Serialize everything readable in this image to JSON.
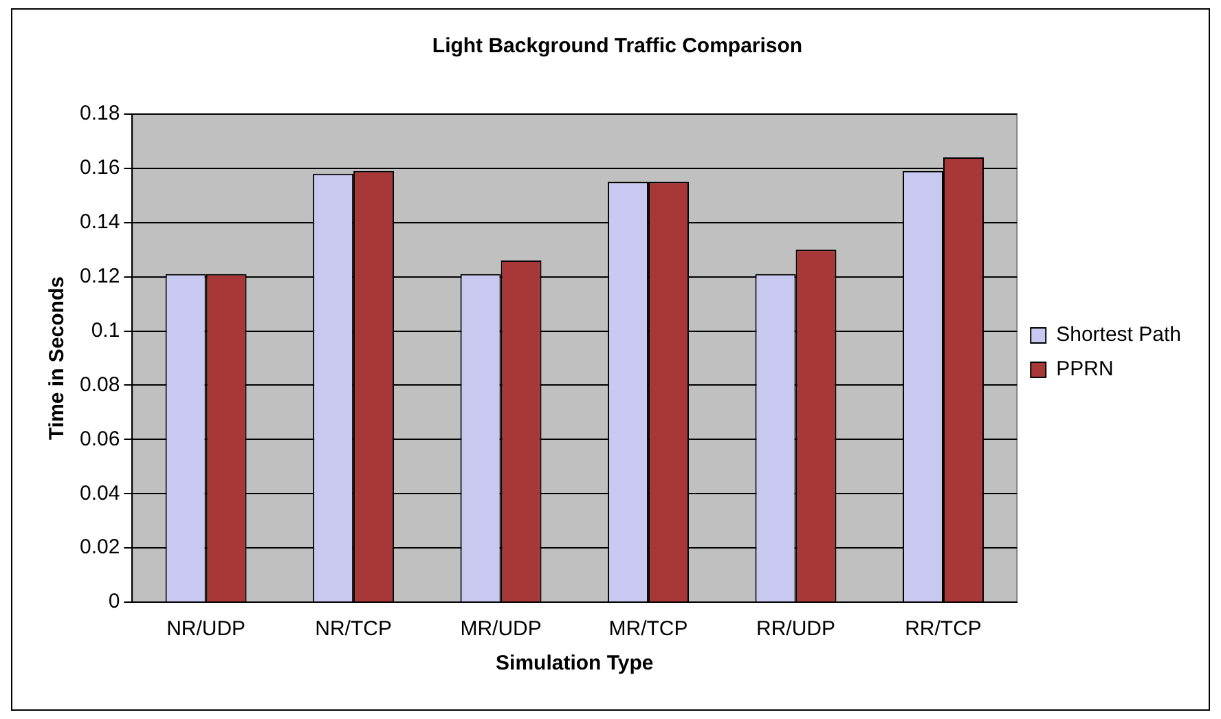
{
  "chart_data": {
    "type": "bar",
    "title": "Light Background Traffic Comparison",
    "xlabel": "Simulation Type",
    "ylabel": "Time in Seconds",
    "categories": [
      "NR/UDP",
      "NR/TCP",
      "MR/UDP",
      "MR/TCP",
      "RR/UDP",
      "RR/TCP"
    ],
    "series": [
      {
        "name": "Shortest Path",
        "color": "#c8c8f0",
        "values": [
          0.121,
          0.158,
          0.121,
          0.155,
          0.121,
          0.159
        ]
      },
      {
        "name": "PPRN",
        "color": "#a83838",
        "values": [
          0.121,
          0.159,
          0.126,
          0.155,
          0.13,
          0.164
        ]
      }
    ],
    "ylim": [
      0,
      0.18
    ],
    "yticks": [
      0,
      0.02,
      0.04,
      0.06,
      0.08,
      0.1,
      0.12,
      0.14,
      0.16,
      0.18
    ],
    "grid": "y",
    "legend": "right"
  }
}
